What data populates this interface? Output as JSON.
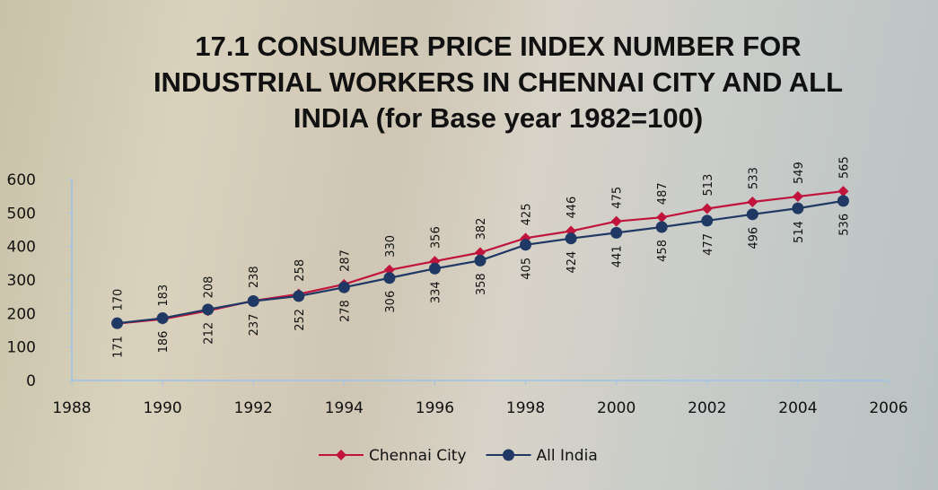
{
  "chart_data": {
    "type": "line",
    "title": "17.1 CONSUMER PRICE INDEX NUMBER FOR\nINDUSTRIAL WORKERS IN CHENNAI CITY AND ALL\nINDIA (for Base year 1982=100)",
    "x": [
      1989,
      1990,
      1991,
      1992,
      1993,
      1994,
      1995,
      1996,
      1997,
      1998,
      1999,
      2000,
      2001,
      2002,
      2003,
      2004,
      2005
    ],
    "series": [
      {
        "name": "Chennai City",
        "color": "#c0143c",
        "marker": "diamond",
        "values": [
          170,
          183,
          208,
          238,
          258,
          287,
          330,
          356,
          382,
          425,
          446,
          475,
          487,
          513,
          533,
          549,
          565
        ]
      },
      {
        "name": "All India",
        "color": "#1f3864",
        "marker": "circle",
        "values": [
          171,
          186,
          212,
          237,
          252,
          278,
          306,
          334,
          358,
          405,
          424,
          441,
          458,
          477,
          496,
          514,
          536
        ]
      }
    ],
    "xlim": [
      1988,
      2006
    ],
    "xticks": [
      1988,
      1990,
      1992,
      1994,
      1996,
      1998,
      2000,
      2002,
      2004,
      2006
    ],
    "ylim": [
      0,
      600
    ],
    "yticks": [
      0,
      100,
      200,
      300,
      400,
      500,
      600
    ],
    "legend": "bottom"
  }
}
